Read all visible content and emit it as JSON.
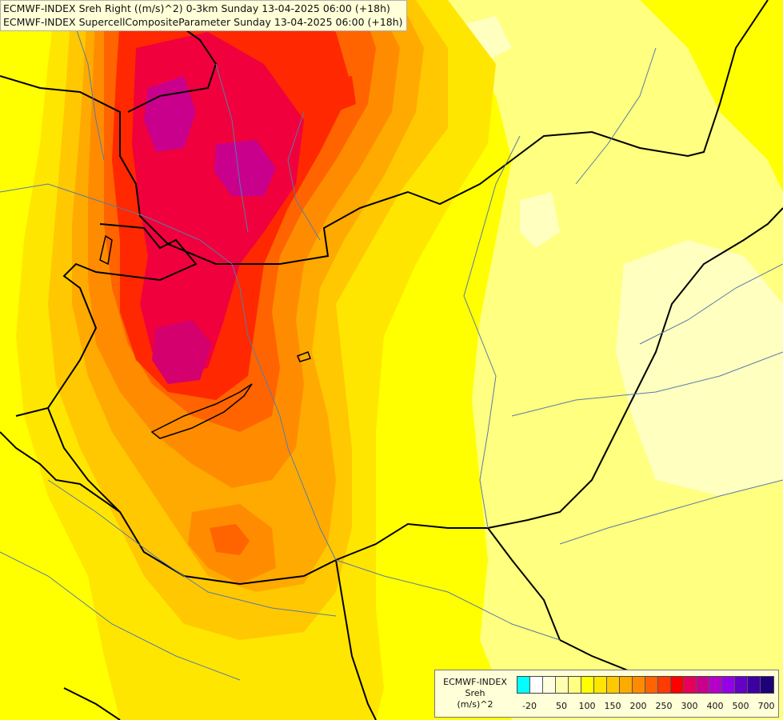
{
  "header": {
    "title_line_1": "ECMWF-INDEX Sreh Right ((m/s)^2) 0-3km Sunday 13-04-2025 06:00 (+18h)",
    "title_line_2": "ECMWF-INDEX SupercellCompositeParameter Sunday 13-04-2025 06:00 (+18h)"
  },
  "legend": {
    "line_1": "ECMWF-INDEX",
    "line_2": "Sreh",
    "line_3": "(m/s)^2",
    "swatch_colors": [
      "#00ffff",
      "#ffffff",
      "#ffffe0",
      "#ffffb0",
      "#ffff80",
      "#ffff00",
      "#ffe600",
      "#ffc800",
      "#ffaa00",
      "#ff8c00",
      "#ff6400",
      "#ff3c00",
      "#ff0000",
      "#e6005a",
      "#c8008c",
      "#b400c8",
      "#9600e6",
      "#6400c8",
      "#3c00a0",
      "#1e0078"
    ],
    "tick_labels": [
      "-20",
      "50",
      "100",
      "150",
      "200",
      "250",
      "300",
      "400",
      "500",
      "700"
    ]
  },
  "palette": {
    "background": "#ffff00",
    "pale_yellow": "#ffff80",
    "very_pale_yellow": "#ffffc0",
    "gold": "#ffe600",
    "light_orange": "#ffc800",
    "orange": "#ffaa00",
    "dark_orange": "#ff8c00",
    "orange_red": "#ff6400",
    "red": "#ff2800",
    "crimson": "#f0003c",
    "magenta": "#c8008c",
    "border": "#000000",
    "river": "#5a7aa8"
  }
}
